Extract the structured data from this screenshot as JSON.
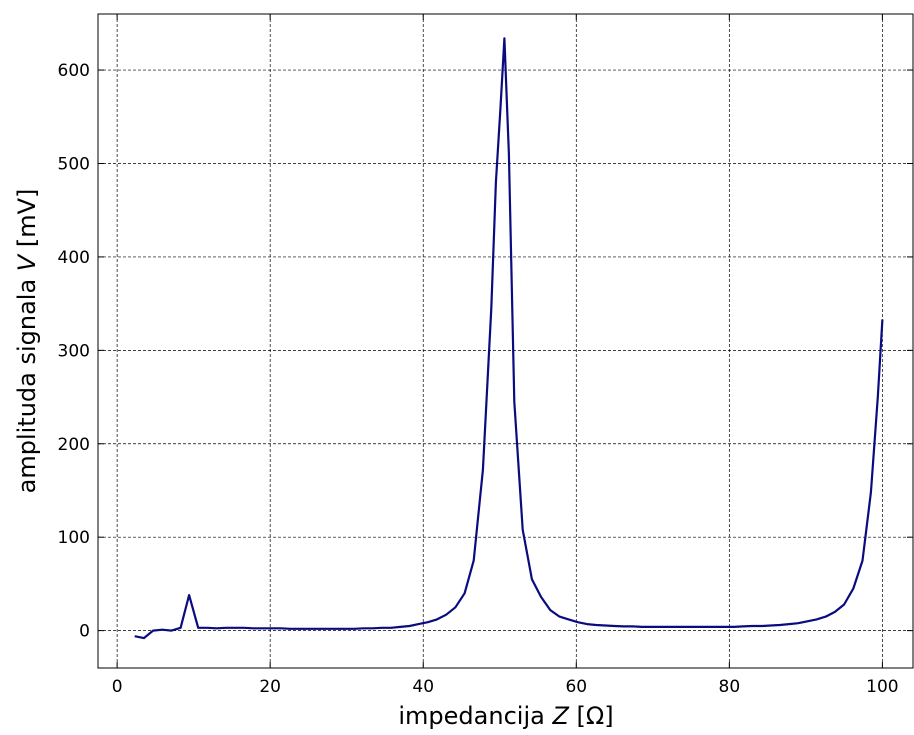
{
  "chart_data": {
    "type": "line",
    "xlabel_parts": [
      "impedancija ",
      "Z",
      " [Ω]"
    ],
    "ylabel_parts": [
      "amplituda signala ",
      "V",
      " [mV]"
    ],
    "xlim": [
      -2.5,
      104
    ],
    "ylim": [
      -40,
      660
    ],
    "xticks": [
      0,
      20,
      40,
      60,
      80,
      100
    ],
    "yticks": [
      0,
      100,
      200,
      300,
      400,
      500,
      600
    ],
    "grid": true,
    "line_color": "#0b0b80",
    "series": [
      {
        "x": [
          2.3,
          3.5,
          4.7,
          5.9,
          7.1,
          8.3,
          9.4,
          10.6,
          11.8,
          13.0,
          14.2,
          15.4,
          16.6,
          17.8,
          19.0,
          20.2,
          21.4,
          22.6,
          23.8,
          25.0,
          26.2,
          27.4,
          28.6,
          29.8,
          31.0,
          32.2,
          33.4,
          34.6,
          35.8,
          37.0,
          38.2,
          39.4,
          40.6,
          41.8,
          43.0,
          44.2,
          45.4,
          46.6,
          47.8,
          48.9,
          49.5,
          50.1,
          50.6,
          51.2,
          51.9,
          53.0,
          54.2,
          55.4,
          56.6,
          57.8,
          59.0,
          60.2,
          61.4,
          62.6,
          63.8,
          65.0,
          66.2,
          67.4,
          68.6,
          69.8,
          71.0,
          72.2,
          73.4,
          74.6,
          75.8,
          77.0,
          78.2,
          79.4,
          80.6,
          81.8,
          83.0,
          84.2,
          85.4,
          86.6,
          87.8,
          89.0,
          90.2,
          91.4,
          92.6,
          93.8,
          95.0,
          96.2,
          97.4,
          98.5,
          99.4,
          100.0
        ],
        "y": [
          -6,
          -8,
          0,
          1,
          0,
          3,
          38,
          3,
          3,
          2.5,
          3,
          3,
          3,
          2.5,
          2.5,
          2.5,
          2.5,
          2,
          2,
          2,
          2,
          2,
          2,
          2,
          2,
          2.5,
          2.5,
          3,
          3,
          4,
          5,
          7,
          9,
          12,
          17,
          25,
          40,
          75,
          172,
          345,
          480,
          560,
          634,
          510,
          245,
          108,
          55,
          36,
          22,
          15,
          12,
          9,
          7,
          6,
          5.5,
          5,
          4.5,
          4.5,
          4,
          4,
          4,
          4,
          4,
          4,
          4,
          4,
          4,
          4,
          4,
          4.5,
          5,
          5,
          5.5,
          6,
          7,
          8,
          10,
          12,
          15,
          20,
          28,
          45,
          75,
          148,
          250,
          333
        ]
      }
    ]
  }
}
